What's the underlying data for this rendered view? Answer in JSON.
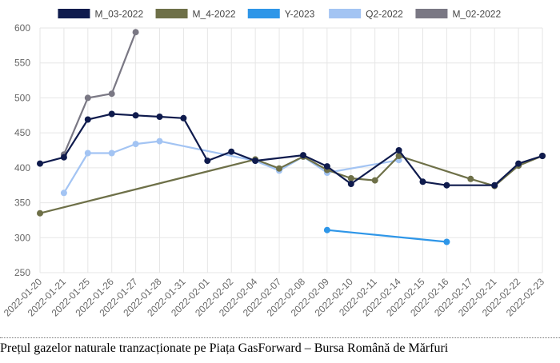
{
  "chart_data": {
    "type": "line",
    "categories": [
      "2022-01-20",
      "2022-01-21",
      "2022-01-25",
      "2022-01-26",
      "2022-01-27",
      "2022-01-28",
      "2022-01-31",
      "2022-02-01",
      "2022-02-02",
      "2022-02-04",
      "2022-02-07",
      "2022-02-08",
      "2022-02-09",
      "2022-02-10",
      "2022-02-11",
      "2022-02-14",
      "2022-02-15",
      "2022-02-16",
      "2022-02-17",
      "2022-02-21",
      "2022-02-22",
      "2022-02-23"
    ],
    "ylim": [
      250,
      600
    ],
    "yticks": [
      250,
      300,
      350,
      400,
      450,
      500,
      550,
      600
    ],
    "grid": true,
    "legend_position": "top",
    "series": [
      {
        "name": "M_03-2022",
        "color": "#0f1b4d",
        "values": [
          406,
          415,
          469,
          477,
          475,
          473,
          471,
          410,
          423,
          410,
          null,
          418,
          402,
          377,
          null,
          425,
          380,
          375,
          null,
          375,
          406,
          417
        ]
      },
      {
        "name": "M_4-2022",
        "color": "#6e7048",
        "values": [
          335,
          null,
          null,
          null,
          null,
          null,
          null,
          null,
          null,
          412,
          399,
          416,
          397,
          385,
          382,
          417,
          null,
          null,
          384,
          374,
          403,
          417
        ]
      },
      {
        "name": "Y-2023",
        "color": "#2e96e8",
        "values": [
          null,
          null,
          null,
          null,
          null,
          null,
          null,
          null,
          null,
          null,
          null,
          null,
          311,
          null,
          null,
          null,
          null,
          294,
          null,
          null,
          null,
          null
        ]
      },
      {
        "name": "Q2-2022",
        "color": "#a3c4f3",
        "values": [
          null,
          364,
          421,
          421,
          434,
          438,
          null,
          null,
          null,
          410,
          396,
          416,
          393,
          null,
          null,
          411,
          null,
          null,
          null,
          null,
          null,
          null
        ]
      },
      {
        "name": "M_02-2022",
        "color": "#7a7884",
        "values": [
          null,
          419,
          500,
          506,
          594,
          null,
          null,
          null,
          null,
          null,
          null,
          null,
          null,
          null,
          null,
          null,
          null,
          null,
          null,
          null,
          null,
          null
        ]
      }
    ]
  },
  "caption": "Prețul gazelor naturale tranzacționate  pe Piața GasForward – Bursa Română de Mărfuri"
}
